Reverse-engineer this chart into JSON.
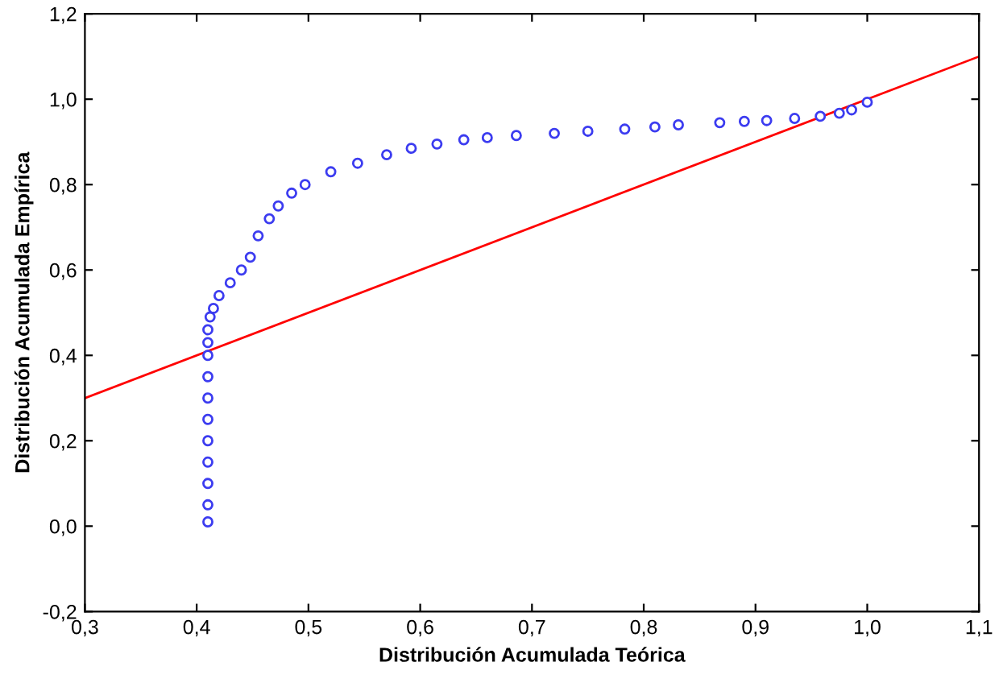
{
  "chart_data": {
    "type": "scatter",
    "xlabel": "Distribución Acumulada Teórica",
    "ylabel": "Distribución Acumulada Empírica",
    "xlim": [
      0.3,
      1.1
    ],
    "ylim": [
      -0.2,
      1.2
    ],
    "xticks": [
      {
        "value": 0.3,
        "label": "0,3"
      },
      {
        "value": 0.4,
        "label": "0,4"
      },
      {
        "value": 0.5,
        "label": "0,5"
      },
      {
        "value": 0.6,
        "label": "0,6"
      },
      {
        "value": 0.7,
        "label": "0,7"
      },
      {
        "value": 0.8,
        "label": "0,8"
      },
      {
        "value": 0.9,
        "label": "0,9"
      },
      {
        "value": 1.0,
        "label": "1,0"
      },
      {
        "value": 1.1,
        "label": "1,1"
      }
    ],
    "yticks": [
      {
        "value": -0.2,
        "label": "-0,2"
      },
      {
        "value": 0.0,
        "label": "0,0"
      },
      {
        "value": 0.2,
        "label": "0,2"
      },
      {
        "value": 0.4,
        "label": "0,4"
      },
      {
        "value": 0.6,
        "label": "0,6"
      },
      {
        "value": 0.8,
        "label": "0,8"
      },
      {
        "value": 1.0,
        "label": "1,0"
      },
      {
        "value": 1.2,
        "label": "1,2"
      }
    ],
    "grid": false,
    "legend": false,
    "series": [
      {
        "color": "#3c3cf0",
        "marker": "circle",
        "x": [
          0.41,
          0.41,
          0.41,
          0.41,
          0.41,
          0.41,
          0.41,
          0.41,
          0.41,
          0.41,
          0.41,
          0.412,
          0.415,
          0.42,
          0.43,
          0.44,
          0.448,
          0.455,
          0.465,
          0.473,
          0.485,
          0.497,
          0.52,
          0.544,
          0.57,
          0.592,
          0.615,
          0.639,
          0.66,
          0.686,
          0.72,
          0.75,
          0.783,
          0.81,
          0.831,
          0.868,
          0.89,
          0.91,
          0.935,
          0.958,
          0.975,
          0.986,
          1.0
        ],
        "values": [
          0.01,
          0.05,
          0.1,
          0.15,
          0.2,
          0.25,
          0.3,
          0.35,
          0.4,
          0.43,
          0.46,
          0.49,
          0.51,
          0.54,
          0.57,
          0.6,
          0.63,
          0.68,
          0.72,
          0.75,
          0.78,
          0.8,
          0.83,
          0.85,
          0.87,
          0.885,
          0.895,
          0.905,
          0.91,
          0.915,
          0.92,
          0.925,
          0.93,
          0.935,
          0.94,
          0.945,
          0.948,
          0.95,
          0.955,
          0.96,
          0.967,
          0.975,
          0.993
        ]
      },
      {
        "type": "line",
        "color": "#ff0000",
        "x": [
          0.3,
          1.1
        ],
        "values": [
          0.3,
          1.1
        ],
        "line_style": "solid"
      }
    ]
  }
}
